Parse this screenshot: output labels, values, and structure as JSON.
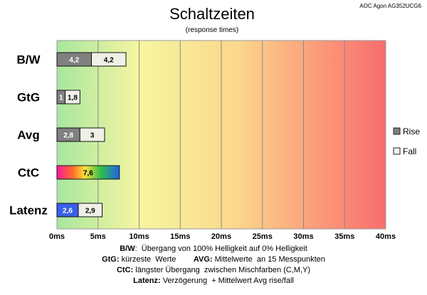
{
  "chart_data": {
    "type": "bar",
    "orientation": "horizontal",
    "title": "Schaltzeiten",
    "subtitle": "(response times)",
    "source": "AOC Agon AG352UCG6",
    "categories": [
      "B/W",
      "GtG",
      "Avg",
      "CtC",
      "Latenz"
    ],
    "series": [
      {
        "name": "Rise",
        "values": [
          4.2,
          1,
          2.8,
          null,
          2.6
        ],
        "labels": [
          "4,2",
          "1",
          "2,8",
          "",
          "2,6"
        ]
      },
      {
        "name": "Fall",
        "values": [
          4.2,
          1.8,
          3,
          null,
          2.9
        ],
        "labels": [
          "4,2",
          "1,8",
          "3",
          "",
          "2,9"
        ]
      },
      {
        "name": "",
        "values": [
          null,
          null,
          null,
          7.6,
          null
        ],
        "labels": [
          "",
          "",
          "",
          "7,6",
          ""
        ]
      }
    ],
    "xlim": [
      0,
      40
    ],
    "x_ticks": [
      "0ms",
      "5ms",
      "10ms",
      "15ms",
      "20ms",
      "25ms",
      "30ms",
      "35ms",
      "40ms"
    ],
    "grid": "vertical",
    "legend_position": "right",
    "colors": {
      "rise": "#808080",
      "fall": "#f0f0e8",
      "latenz_rise": "#3a5fe8"
    }
  },
  "notes": [
    {
      "k1": "B/W",
      "t1": ":  Übergang von 100% Helligkeit auf 0% Helligkeit"
    },
    {
      "k1": "GtG:",
      "t1": " kürzeste  Werte        ",
      "k2": "AVG:",
      "t2": " Mittelwerte  an 15 Messpunkten"
    },
    {
      "k1": "CtC:",
      "t1": " längster Übergang  zwischen Mischfarben (C,M,Y)"
    },
    {
      "k1": "Latenz:",
      "t1": " Verzögerung  + Mittelwert Avg rise/fall"
    }
  ]
}
